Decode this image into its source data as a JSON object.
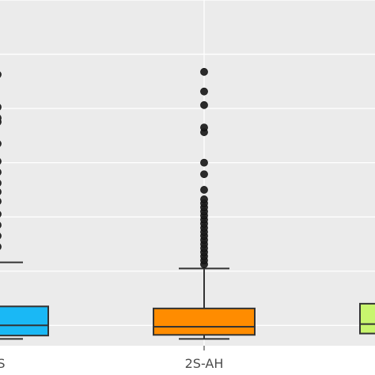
{
  "chart_data": {
    "type": "box",
    "title": "",
    "xlabel": "",
    "ylabel": "",
    "grid": true,
    "background": "#ebebeb",
    "gridline_color": "#ffffff",
    "ylim": [
      -10,
      500
    ],
    "y_gridlines": [
      20,
      100,
      180,
      260,
      340,
      420,
      500
    ],
    "categories": [
      "LS",
      "2S-AH",
      ""
    ],
    "boxes": [
      {
        "label": "LS",
        "color": "#1ab8f5",
        "whisker_low": 0,
        "q1": 5,
        "median": 20,
        "q3": 48,
        "whisker_high": 113,
        "outliers": [
          136,
          152,
          168,
          184,
          203,
          217,
          230,
          246,
          262,
          288,
          320,
          326,
          342,
          390
        ]
      },
      {
        "label": "2S-AH",
        "color": "#ff8c00",
        "whisker_low": 0,
        "q1": 6,
        "median": 18,
        "q3": 45,
        "whisker_high": 104,
        "outliers": [
          110,
          116,
          122,
          128,
          134,
          140,
          146,
          152,
          158,
          164,
          170,
          176,
          182,
          188,
          194,
          200,
          206,
          220,
          243,
          260,
          305,
          312,
          345,
          365,
          394
        ]
      },
      {
        "label": "",
        "color": "#c8f56e",
        "whisker_low": 0,
        "q1": 8,
        "median": 22,
        "q3": 52,
        "whisker_high": 60,
        "outliers": []
      }
    ]
  }
}
